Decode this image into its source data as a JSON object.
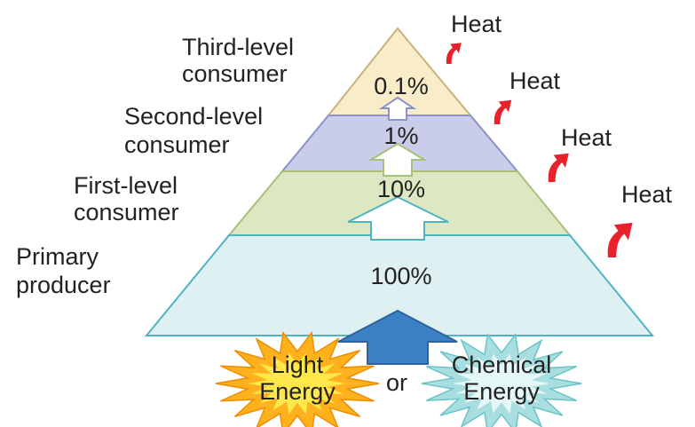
{
  "levels": [
    {
      "label": [
        "Third-level",
        "consumer"
      ],
      "percent": "0.1%"
    },
    {
      "label": [
        "Second-level",
        "consumer"
      ],
      "percent": "1%"
    },
    {
      "label": [
        "First-level",
        "consumer"
      ],
      "percent": "10%"
    },
    {
      "label": [
        "Primary",
        "producer"
      ],
      "percent": "100%"
    }
  ],
  "heat": [
    "Heat",
    "Heat",
    "Heat",
    "Heat"
  ],
  "sources": {
    "light": [
      "Light",
      "Energy"
    ],
    "or": "or",
    "chemical": [
      "Chemical",
      "Energy"
    ]
  }
}
